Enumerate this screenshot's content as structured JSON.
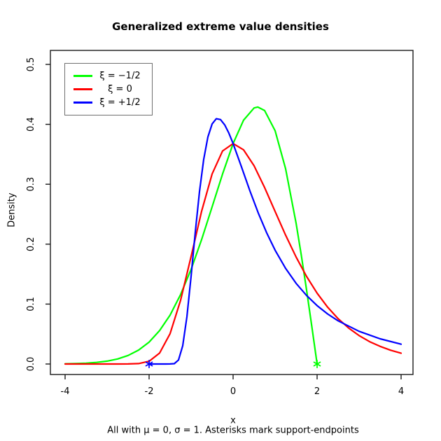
{
  "title": "Generalized extreme value densities",
  "axes": {
    "x_label": "x",
    "y_label": "Density",
    "subtitle": "All with μ = 0, σ = 1. Asterisks mark support-endpoints"
  },
  "legend": {
    "items": [
      {
        "label": "ξ = −1/2",
        "color": "#00ff00"
      },
      {
        "label": "ξ = 0",
        "color": "#ff0000"
      },
      {
        "label": "ξ = +1/2",
        "color": "#0000ff"
      }
    ]
  },
  "chart_data": {
    "type": "line",
    "title": "Generalized extreme value densities",
    "xlabel": "x",
    "ylabel": "Density",
    "subtitle": "All with μ = 0, σ = 1. Asterisks mark support-endpoints",
    "xlim": [
      -4.35,
      4.28
    ],
    "ylim": [
      0,
      0.52
    ],
    "x_ticks": {
      "values": [
        -4,
        -2,
        0,
        2,
        4
      ],
      "labels": [
        "-4",
        "-2",
        "0",
        "2",
        "4"
      ]
    },
    "y_ticks": {
      "values": [
        0.0,
        0.1,
        0.2,
        0.3,
        0.4,
        0.5
      ],
      "labels": [
        "0.0",
        "0.1",
        "0.2",
        "0.3",
        "0.4",
        "0.5"
      ]
    },
    "grid": false,
    "legend_position": "top-left",
    "series": [
      {
        "name": "xi = -1/2",
        "color": "#00ff00",
        "points": [
          [
            -4,
            0.0004
          ],
          [
            -3.75,
            0.0007
          ],
          [
            -3.5,
            0.0014
          ],
          [
            -3.25,
            0.0027
          ],
          [
            -3,
            0.0048
          ],
          [
            -2.75,
            0.0084
          ],
          [
            -2.5,
            0.0143
          ],
          [
            -2.25,
            0.0233
          ],
          [
            -2,
            0.0366
          ],
          [
            -1.75,
            0.0557
          ],
          [
            -1.5,
            0.0817
          ],
          [
            -1.25,
            0.116
          ],
          [
            -1,
            0.158
          ],
          [
            -0.75,
            0.2076
          ],
          [
            -0.5,
            0.2622
          ],
          [
            -0.25,
            0.3173
          ],
          [
            0,
            0.3679
          ],
          [
            0.25,
            0.407
          ],
          [
            0.5,
            0.4273
          ],
          [
            0.586,
            0.4289
          ],
          [
            0.75,
            0.423
          ],
          [
            1,
            0.3894
          ],
          [
            1.25,
            0.3258
          ],
          [
            1.5,
            0.2349
          ],
          [
            1.625,
            0.181
          ],
          [
            1.75,
            0.1231
          ],
          [
            1.875,
            0.0623
          ],
          [
            1.95,
            0.025
          ],
          [
            2,
            0.0
          ]
        ]
      },
      {
        "name": "xi = 0",
        "color": "#ff0000",
        "points": [
          [
            -4,
            0.0
          ],
          [
            -3.5,
            0.0
          ],
          [
            -3,
            0.0
          ],
          [
            -2.75,
            0.0
          ],
          [
            -2.5,
            0.0001
          ],
          [
            -2.25,
            0.0007
          ],
          [
            -2,
            0.0046
          ],
          [
            -1.75,
            0.0182
          ],
          [
            -1.5,
            0.0507
          ],
          [
            -1.25,
            0.1064
          ],
          [
            -1,
            0.1794
          ],
          [
            -0.75,
            0.2549
          ],
          [
            -0.5,
            0.317
          ],
          [
            -0.25,
            0.3556
          ],
          [
            0,
            0.3679
          ],
          [
            0.25,
            0.3574
          ],
          [
            0.5,
            0.3307
          ],
          [
            0.75,
            0.2945
          ],
          [
            1,
            0.2546
          ],
          [
            1.25,
            0.2151
          ],
          [
            1.5,
            0.1785
          ],
          [
            1.75,
            0.146
          ],
          [
            2,
            0.1182
          ],
          [
            2.25,
            0.0949
          ],
          [
            2.5,
            0.0757
          ],
          [
            2.75,
            0.06
          ],
          [
            3,
            0.0474
          ],
          [
            3.25,
            0.0373
          ],
          [
            3.5,
            0.0294
          ],
          [
            3.75,
            0.023
          ],
          [
            4,
            0.018
          ]
        ]
      },
      {
        "name": "xi = +1/2",
        "color": "#0000ff",
        "points": [
          [
            -2,
            0.0
          ],
          [
            -1.8,
            0.0
          ],
          [
            -1.6,
            0.0
          ],
          [
            -1.5,
            0.0001
          ],
          [
            -1.4,
            0.0006
          ],
          [
            -1.3,
            0.0067
          ],
          [
            -1.2,
            0.0302
          ],
          [
            -1.1,
            0.0787
          ],
          [
            -1,
            0.1465
          ],
          [
            -0.9,
            0.2204
          ],
          [
            -0.8,
            0.2879
          ],
          [
            -0.7,
            0.3415
          ],
          [
            -0.6,
            0.379
          ],
          [
            -0.5,
            0.4006
          ],
          [
            -0.4,
            0.4094
          ],
          [
            -0.3,
            0.408
          ],
          [
            -0.2,
            0.3991
          ],
          [
            -0.1,
            0.3852
          ],
          [
            0,
            0.3679
          ],
          [
            0.2,
            0.3288
          ],
          [
            0.4,
            0.289
          ],
          [
            0.6,
            0.2519
          ],
          [
            0.8,
            0.2188
          ],
          [
            1,
            0.19
          ],
          [
            1.25,
            0.1596
          ],
          [
            1.5,
            0.1346
          ],
          [
            1.75,
            0.1142
          ],
          [
            2,
            0.0974
          ],
          [
            2.25,
            0.0835
          ],
          [
            2.5,
            0.0721
          ],
          [
            3,
            0.0545
          ],
          [
            3.5,
            0.0421
          ],
          [
            4,
            0.0331
          ]
        ]
      }
    ],
    "markers": [
      {
        "x": -2,
        "y": 0.0,
        "color": "#0000ff",
        "shape": "asterisk"
      },
      {
        "x": 2,
        "y": 0.0,
        "color": "#00ff00",
        "shape": "asterisk"
      }
    ]
  }
}
